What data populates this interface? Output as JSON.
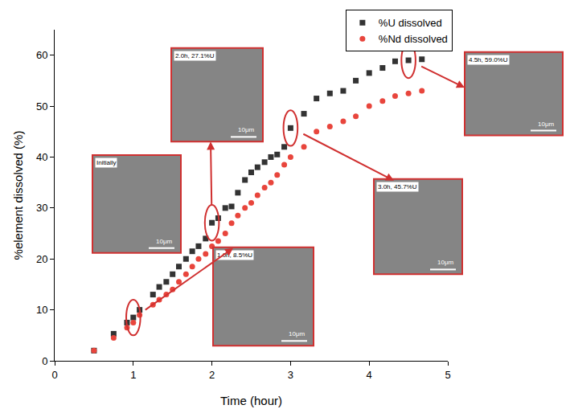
{
  "chart_data": {
    "type": "scatter",
    "x_label": "Time (hour)",
    "y_label": "%element dissolved (%)",
    "xlim": [
      0,
      5
    ],
    "xticks": [
      0,
      1,
      2,
      3,
      4,
      5
    ],
    "ylim": [
      0,
      65
    ],
    "yticks": [
      0,
      10,
      20,
      30,
      40,
      50,
      60
    ],
    "grid": false,
    "legend": "top right",
    "series": [
      {
        "name": "%U dissolved",
        "color": "#333333",
        "marker": "square",
        "x": [
          0.5,
          0.75,
          0.92,
          1.0,
          1.08,
          1.25,
          1.33,
          1.42,
          1.5,
          1.58,
          1.67,
          1.75,
          1.83,
          1.92,
          2.0,
          2.08,
          2.17,
          2.25,
          2.33,
          2.42,
          2.5,
          2.58,
          2.67,
          2.75,
          2.83,
          2.92,
          3.0,
          3.17,
          3.33,
          3.5,
          3.67,
          3.83,
          4.0,
          4.17,
          4.33,
          4.5,
          4.67
        ],
        "values": [
          2,
          5.3,
          7.5,
          8.5,
          10,
          13,
          14.5,
          15.5,
          17,
          18.5,
          20,
          21.5,
          22.5,
          24,
          27.1,
          28,
          30,
          30.3,
          33,
          35.5,
          37,
          38,
          39,
          40,
          40.5,
          42,
          45.7,
          48.5,
          51.5,
          52.5,
          53,
          55,
          56.5,
          57.5,
          58.8,
          59,
          59.2
        ]
      },
      {
        "name": "%Nd dissolved",
        "color": "#e8453c",
        "marker": "circle",
        "x": [
          0.5,
          0.75,
          0.92,
          1.0,
          1.08,
          1.25,
          1.33,
          1.42,
          1.5,
          1.58,
          1.67,
          1.75,
          1.83,
          1.92,
          2.0,
          2.08,
          2.17,
          2.25,
          2.33,
          2.42,
          2.5,
          2.58,
          2.67,
          2.75,
          2.83,
          2.92,
          3.0,
          3.17,
          3.33,
          3.5,
          3.67,
          3.83,
          4.0,
          4.17,
          4.33,
          4.5,
          4.67
        ],
        "values": [
          2,
          4.5,
          6.5,
          7.5,
          9,
          11,
          12,
          13,
          14,
          15.5,
          17,
          18.5,
          20,
          21,
          22.5,
          23.5,
          25,
          27,
          28.5,
          30,
          31,
          32.5,
          34,
          35,
          36.5,
          38.5,
          40,
          42,
          45,
          46,
          47,
          48,
          50,
          51,
          52,
          52.5,
          53
        ]
      }
    ],
    "annotations": [
      {
        "text": "Initially",
        "scale": "10μm"
      },
      {
        "text": "1.0h, 8.5%U",
        "scale": "10μm",
        "x": 1.0,
        "y": 8.5
      },
      {
        "text": "2.0h, 27.1%U",
        "scale": "10μm",
        "x": 2.0,
        "y": 27.1
      },
      {
        "text": "3.0h, 45.7%U",
        "scale": "10μm",
        "x": 3.0,
        "y": 45.7
      },
      {
        "text": "4.5h, 59.0%U",
        "scale": "10μm",
        "x": 4.5,
        "y": 59.0
      }
    ]
  }
}
